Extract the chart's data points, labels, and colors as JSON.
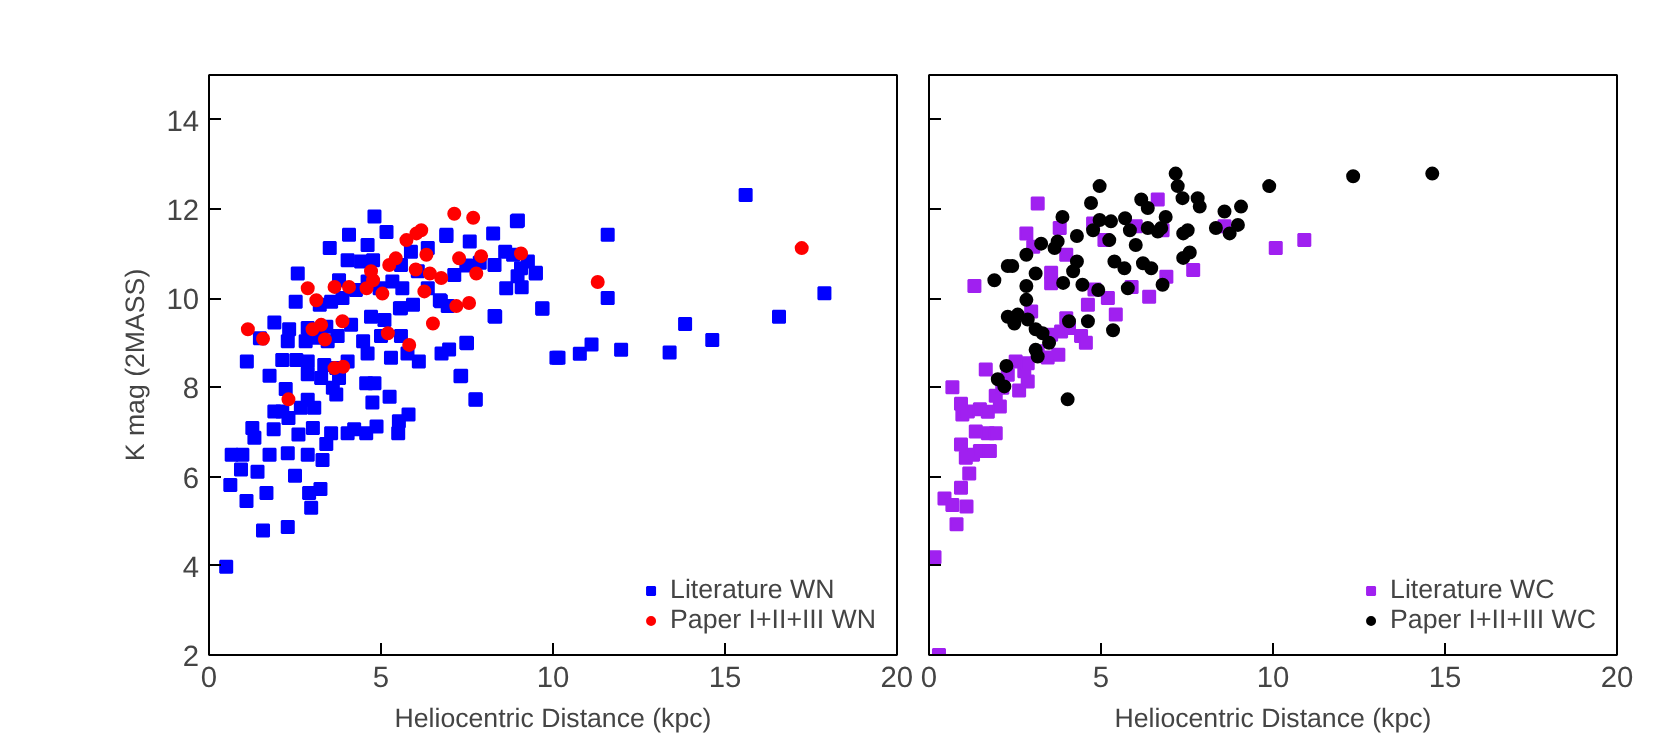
{
  "chart_data": [
    {
      "type": "scatter",
      "xlabel": "Heliocentric Distance (kpc)",
      "ylabel": "K mag (2MASS)",
      "xlim": [
        0,
        20
      ],
      "ylim": [
        2,
        15
      ],
      "xticks": [
        0,
        5,
        10,
        15,
        20
      ],
      "yticks": [
        2,
        4,
        6,
        8,
        10,
        12,
        14
      ],
      "legend": "bottom right",
      "grid": false,
      "series": [
        {
          "name": "Literature WN",
          "color": "#0000ff",
          "marker": "square",
          "x": [
            0.5,
            1.57,
            2.29,
            0.62,
            1.09,
            1.67,
            2.97,
            2.91,
            3.24,
            0.66,
            0.97,
            0.93,
            1.41,
            1.76,
            2.29,
            2.87,
            2.5,
            3.3,
            3.41,
            1.32,
            1.26,
            1.88,
            2.6,
            3.02,
            3.55,
            4.03,
            4.22,
            4.57,
            4.87,
            5.5,
            5.52,
            5.8,
            1.9,
            2.13,
            2.31,
            2.67,
            3.06,
            2.87,
            2.23,
            3.7,
            3.6,
            4.57,
            4.81,
            4.75,
            5.25,
            1.76,
            3.26,
            3.78,
            7.33,
            7.75,
            1.1,
            2.13,
            2.54,
            2.87,
            2.87,
            3.35,
            3.7,
            4.03,
            4.61,
            5.29,
            5.77,
            6.1,
            6.76,
            6.98,
            7.5,
            10.1,
            2.29,
            2.81,
            3.12,
            3.45,
            3.74,
            4.48,
            5.0,
            5.58,
            1.9,
            2.33,
            2.87,
            3.41,
            4.13,
            4.71,
            5.1,
            5.58,
            5.93,
            6.74,
            6.94,
            8.3,
            9.69,
            2.52,
            3.22,
            3.55,
            3.88,
            4.27,
            4.61,
            4.96,
            5.33,
            5.55,
            6.36,
            6.71,
            7.13,
            7.48,
            7.87,
            8.3,
            8.61,
            8.84,
            9.07,
            9.27,
            9.5,
            8.98,
            8.26,
            6.9,
            6.36,
            5.87,
            5.16,
            4.81,
            4.61,
            4.07,
            3.51,
            2.58,
            3.78,
            4.42,
            4.03,
            4.77,
            5.58,
            6.07,
            5.62,
            1.48,
            15.6,
            17.89,
            16.57,
            14.63,
            13.84,
            13.39,
            11.98,
            11.59,
            11.59,
            11.12,
            10.78,
            10.16,
            9.69,
            9.5,
            9.09,
            8.97,
            8.95,
            8.64,
            8.32,
            7.75,
            7.31,
            7.48,
            6.9,
            7.58
          ],
          "values": [
            3.98,
            4.79,
            4.87,
            5.81,
            5.45,
            5.63,
            5.3,
            5.63,
            5.72,
            6.49,
            6.49,
            6.16,
            6.11,
            6.49,
            6.52,
            6.49,
            6.02,
            6.37,
            6.73,
            6.87,
            7.09,
            7.06,
            6.94,
            7.09,
            6.97,
            6.97,
            7.06,
            6.97,
            7.12,
            6.97,
            7.24,
            7.39,
            7.46,
            7.46,
            7.31,
            7.54,
            7.54,
            7.72,
            7.96,
            7.84,
            7.99,
            8.09,
            8.09,
            7.66,
            7.79,
            8.26,
            8.21,
            8.21,
            8.26,
            7.72,
            8.58,
            8.61,
            8.61,
            8.29,
            8.58,
            8.5,
            8.43,
            8.58,
            8.76,
            8.66,
            8.76,
            8.58,
            8.76,
            8.85,
            8.99,
            8.66,
            9.03,
            9.03,
            9.11,
            9.03,
            9.15,
            9.03,
            9.15,
            9.15,
            9.45,
            9.3,
            9.33,
            9.36,
            9.4,
            9.58,
            9.51,
            9.77,
            9.85,
            9.93,
            9.82,
            9.6,
            9.77,
            9.92,
            9.85,
            9.92,
            10.0,
            10.18,
            10.37,
            10.22,
            10.37,
            9.77,
            10.22,
            9.95,
            10.52,
            10.73,
            10.79,
            10.74,
            11.04,
            10.97,
            10.67,
            10.82,
            10.57,
            11.74,
            11.45,
            11.42,
            11.12,
            11.04,
            11.48,
            11.83,
            11.19,
            11.42,
            11.12,
            10.55,
            10.4,
            10.82,
            10.85,
            10.85,
            10.74,
            10.6,
            10.22,
            9.1,
            12.31,
            10.11,
            9.58,
            9.06,
            9.42,
            8.78,
            8.84,
            10.0,
            11.42,
            8.96,
            8.75,
            8.66,
            9.76,
            10.55,
            10.24,
            10.49,
            11.72,
            10.22,
            9.58,
            7.73,
            8.25,
            9.0,
            11.39,
            11.27
          ]
        },
        {
          "name": "Paper I+II+III WN",
          "color": "#ff0000",
          "marker": "circle",
          "x": [
            1.13,
            1.57,
            2.87,
            3.12,
            3.01,
            3.26,
            3.37,
            3.88,
            3.65,
            4.07,
            4.58,
            4.77,
            4.71,
            5.04,
            5.24,
            5.43,
            5.74,
            6.03,
            6.17,
            6.01,
            6.32,
            6.42,
            6.75,
            6.26,
            6.51,
            5.82,
            5.2,
            3.65,
            3.9,
            2.31,
            7.13,
            7.68,
            7.27,
            7.77,
            7.91,
            7.56,
            7.19,
            9.07,
            17.23,
            11.3
          ],
          "values": [
            9.3,
            9.09,
            10.22,
            9.95,
            9.3,
            9.4,
            9.07,
            9.48,
            10.25,
            10.25,
            10.22,
            10.4,
            10.6,
            10.1,
            10.74,
            10.89,
            11.3,
            11.45,
            11.52,
            10.64,
            10.97,
            10.55,
            10.45,
            10.15,
            9.43,
            8.95,
            9.21,
            8.43,
            8.46,
            7.73,
            11.89,
            11.8,
            10.89,
            10.55,
            10.94,
            9.89,
            9.82,
            11.0,
            11.12,
            10.36
          ]
        }
      ]
    },
    {
      "type": "scatter",
      "xlabel": "Heliocentric Distance (kpc)",
      "xlim": [
        0,
        20
      ],
      "ylim": [
        2,
        15
      ],
      "xticks": [
        0,
        5,
        10,
        15,
        20
      ],
      "yticks": [
        {
          "value": 2,
          "label": null
        },
        {
          "value": 4,
          "label": null
        },
        {
          "value": 6,
          "label": null
        },
        {
          "value": 8,
          "label": null
        },
        {
          "value": 10,
          "label": null
        },
        {
          "value": 12,
          "label": null
        },
        {
          "value": 14,
          "label": null
        }
      ],
      "tick_labels": "x",
      "legend": "bottom right",
      "grid": false,
      "series": [
        {
          "name": "Literature WC",
          "color": "#a020f0",
          "marker": "square",
          "x": [
            0.29,
            0.16,
            0.45,
            0.68,
            0.8,
            0.93,
            1.09,
            1.17,
            1.07,
            1.28,
            0.93,
            1.48,
            1.77,
            1.36,
            1.71,
            1.94,
            0.97,
            1.13,
            1.48,
            1.71,
            2.06,
            0.93,
            0.68,
            1.94,
            2.13,
            1.65,
            2.29,
            2.62,
            2.87,
            2.52,
            2.77,
            2.87,
            3.45,
            3.76,
            3.16,
            3.55,
            3.84,
            4.07,
            4.42,
            4.56,
            3.99,
            2.97,
            4.62,
            4.81,
            5.2,
            5.43,
            5.89,
            6.4,
            6.9,
            7.68,
            1.32,
            3.55,
            3.55,
            3.99,
            2.83,
            3.03,
            3.16,
            3.8,
            4.77,
            5.1,
            6.01,
            6.65,
            6.79,
            8.59,
            10.08,
            10.91
          ],
          "values": [
            2.0,
            4.19,
            5.51,
            5.36,
            4.93,
            5.75,
            5.33,
            6.07,
            6.42,
            6.49,
            6.72,
            6.57,
            6.57,
            7.01,
            6.97,
            6.97,
            7.39,
            7.46,
            7.51,
            7.45,
            7.57,
            7.63,
            8.0,
            7.81,
            7.99,
            8.4,
            8.28,
            7.93,
            8.13,
            8.58,
            8.36,
            8.54,
            8.67,
            8.73,
            8.81,
            9.18,
            9.25,
            9.33,
            9.15,
            9.0,
            9.55,
            9.7,
            9.85,
            10.19,
            10.0,
            9.63,
            10.25,
            10.03,
            10.48,
            10.63,
            10.27,
            10.33,
            10.57,
            10.97,
            11.45,
            11.15,
            12.12,
            11.57,
            11.67,
            11.3,
            11.61,
            12.21,
            11.52,
            11.61,
            11.12,
            11.3
          ]
        },
        {
          "name": "Paper I+II+III WC",
          "color": "#000000",
          "marker": "circle",
          "x": [
            1.9,
            2.29,
            2.42,
            2.29,
            2.48,
            2.58,
            2.25,
            2.0,
            2.19,
            2.83,
            2.87,
            3.1,
            3.3,
            3.49,
            3.1,
            3.16,
            2.83,
            2.83,
            3.1,
            3.26,
            3.65,
            3.74,
            3.88,
            3.9,
            4.07,
            4.03,
            4.19,
            4.3,
            4.3,
            4.46,
            4.62,
            4.71,
            4.77,
            4.96,
            4.96,
            4.92,
            5.24,
            5.29,
            5.35,
            5.39,
            5.68,
            5.7,
            5.78,
            5.84,
            6.01,
            6.17,
            6.22,
            6.36,
            6.36,
            6.46,
            6.65,
            6.75,
            6.79,
            6.88,
            7.17,
            7.23,
            7.37,
            7.39,
            7.39,
            7.52,
            7.58,
            7.81,
            7.87,
            8.34,
            8.59,
            8.74,
            8.98,
            9.07,
            9.89,
            12.33,
            14.63
          ],
          "values": [
            10.4,
            10.72,
            10.72,
            9.58,
            9.43,
            9.63,
            8.48,
            8.18,
            8.02,
            9.96,
            9.52,
            9.3,
            9.21,
            9.0,
            8.84,
            8.69,
            10.27,
            10.97,
            10.55,
            11.22,
            11.12,
            11.27,
            11.82,
            10.34,
            9.48,
            7.73,
            10.6,
            11.39,
            10.82,
            10.3,
            9.48,
            12.13,
            11.52,
            11.75,
            12.51,
            10.18,
            11.3,
            11.72,
            9.28,
            10.82,
            10.67,
            11.79,
            10.22,
            11.52,
            11.19,
            12.21,
            10.78,
            12.02,
            11.57,
            10.67,
            11.49,
            11.57,
            10.3,
            11.82,
            12.79,
            12.51,
            12.24,
            11.45,
            10.9,
            11.52,
            11.02,
            12.24,
            12.05,
            11.57,
            11.94,
            11.45,
            11.64,
            12.05,
            12.51,
            12.73,
            12.79
          ]
        }
      ]
    }
  ]
}
